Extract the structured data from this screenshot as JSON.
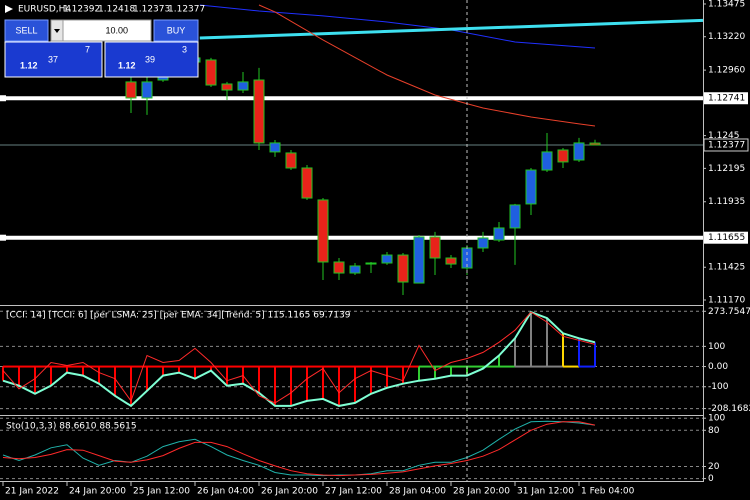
{
  "chart_data": [
    {
      "type": "candlestick",
      "title": "EURUSD,H4",
      "x": [
        8,
        9,
        10,
        11,
        12,
        13,
        14,
        15,
        16,
        17,
        18,
        19,
        20,
        21,
        22,
        23,
        24,
        25,
        26,
        27,
        28,
        29,
        30,
        31,
        32,
        33,
        34,
        35,
        36,
        37
      ],
      "open": [
        1.12868,
        1.12743,
        1.12883,
        1.12938,
        1.13023,
        1.13039,
        1.12852,
        1.12805,
        1.12883,
        1.12323,
        1.12315,
        1.12198,
        1.11949,
        1.11466,
        1.1138,
        1.1145,
        1.11458,
        1.1152,
        1.11302,
        1.11661,
        1.11497,
        1.11419,
        1.11575,
        1.11637,
        1.11731,
        1.11918,
        1.12182,
        1.12338,
        1.1226,
        1.12392
      ],
      "high": [
        1.12907,
        1.12907,
        1.12961,
        1.13078,
        1.13117,
        1.13055,
        1.12868,
        1.12945,
        1.12977,
        1.12416,
        1.12338,
        1.12221,
        1.11964,
        1.11497,
        1.11458,
        1.11466,
        1.11544,
        1.11536,
        1.11676,
        1.117,
        1.1152,
        1.11598,
        1.117,
        1.11777,
        1.11918,
        1.12198,
        1.1247,
        1.12354,
        1.12432,
        1.12418
      ],
      "low": [
        1.12626,
        1.12611,
        1.12868,
        1.12922,
        1.12992,
        1.12829,
        1.12727,
        1.12782,
        1.12338,
        1.12284,
        1.12182,
        1.11949,
        1.11326,
        1.11326,
        1.11365,
        1.1138,
        1.11443,
        1.11209,
        1.11302,
        1.11365,
        1.11419,
        1.11365,
        1.11544,
        1.11622,
        1.11443,
        1.11832,
        1.12167,
        1.12198,
        1.12245,
        1.12373
      ],
      "close": [
        1.12743,
        1.12868,
        1.12938,
        1.13023,
        1.13055,
        1.12844,
        1.12805,
        1.12868,
        1.12393,
        1.12393,
        1.12198,
        1.11964,
        1.11466,
        1.1138,
        1.11435,
        1.11458,
        1.1152,
        1.1131,
        1.11661,
        1.11497,
        1.1145,
        1.11575,
        1.11653,
        1.11731,
        1.1191,
        1.12182,
        1.12323,
        1.12245,
        1.12393,
        1.12377
      ],
      "up_color": "#1f5fe0",
      "down_color": "#e8231a",
      "wick_color": "#22c522",
      "lines": [
        {
          "color": "#2030ff",
          "x": [
            12.3,
            16,
            20,
            24,
            28,
            32,
            37
          ],
          "values": [
            1.13467,
            1.1342,
            1.13382,
            1.13335,
            1.13273,
            1.13179,
            1.13132
          ]
        },
        {
          "color": "#3ee0f0",
          "x": [
            12.3,
            43.75
          ],
          "values": [
            1.1321,
            1.13347
          ]
        },
        {
          "color": "#e8402a",
          "x": [
            16,
            17,
            20,
            24,
            27,
            30,
            33,
            36,
            37
          ],
          "values": [
            1.13467,
            1.13413,
            1.13195,
            1.12922,
            1.12766,
            1.12665,
            1.12595,
            1.12541,
            1.12525
          ]
        }
      ],
      "hlines": [
        1.12741,
        1.11655
      ],
      "xlim": [
        -0.1875,
        43.75
      ],
      "ylim": [
        1.11131,
        1.13506
      ],
      "yticks": [
        1.13475,
        {
          "value": 1.1322,
          "label": "1.13220"
        },
        {
          "value": 1.1296,
          "label": "1.12960"
        },
        1.1245,
        1.12195,
        1.11935,
        1.11425,
        {
          "value": 1.1117,
          "label": "1.11170"
        }
      ],
      "xticks": [
        {
          "value": 0,
          "label": "21 Jan 2022"
        },
        {
          "value": 4,
          "label": "24 Jan 20:00"
        },
        {
          "value": 8,
          "label": "25 Jan 12:00"
        },
        {
          "value": 12,
          "label": "26 Jan 04:00"
        },
        {
          "value": 16,
          "label": "26 Jan 20:00"
        },
        {
          "value": 20,
          "label": "27 Jan 12:00"
        },
        {
          "value": 24,
          "label": "28 Jan 04:00"
        },
        {
          "value": 28,
          "label": "28 Jan 20:00"
        },
        {
          "value": 32,
          "label": "31 Jan 12:00"
        },
        {
          "value": 36,
          "label": "1 Feb 04:00"
        }
      ]
    },
    {
      "type": "histogram",
      "title": "[CCI: 14] [TCCI: 6] [per LSMA: 25] [per EMA: 34][Trend: 5]  115.1165 69.7139",
      "x": [
        0,
        1,
        2,
        3,
        4,
        5,
        6,
        7,
        8,
        9,
        10,
        11,
        12,
        13,
        14,
        15,
        16,
        17,
        18,
        19,
        20,
        21,
        22,
        23,
        24,
        25,
        26,
        27,
        28,
        29,
        30,
        31,
        32,
        33,
        34,
        35,
        36,
        37
      ],
      "series": [
        {
          "color": "#7fffd4",
          "values": [
            -70,
            -95,
            -135,
            -95,
            -30,
            -45,
            -85,
            -145,
            -195,
            -120,
            -45,
            -30,
            -60,
            -20,
            -95,
            -85,
            -130,
            -195,
            -195,
            -170,
            -160,
            -195,
            -180,
            -135,
            -105,
            -85,
            -70,
            -60,
            -45,
            -45,
            -10,
            55,
            140,
            270,
            240,
            165,
            140,
            120
          ],
          "bar_colors": [
            "#ff0000",
            "#ff0000",
            "#ff0000",
            "#ff0000",
            "#ff0000",
            "#ff0000",
            "#ff0000",
            "#ff0000",
            "#ff0000",
            "#ff0000",
            "#ff0000",
            "#ff0000",
            "#ff0000",
            "#ff0000",
            "#ff0000",
            "#ff0000",
            "#ff0000",
            "#ff0000",
            "#ff0000",
            "#ff0000",
            "#ff0000",
            "#ff0000",
            "#ff0000",
            "#ff0000",
            "#ff0000",
            "#ff0000",
            "#32cd32",
            "#32cd32",
            "#32cd32",
            "#32cd32",
            "#32cd32",
            "#32cd32",
            "#808080",
            "#808080",
            "#808080",
            "#ffd700",
            "#1020ff",
            "#1020ff"
          ]
        },
        {
          "color": "#ff2a2a",
          "values": [
            -20,
            -110,
            -60,
            20,
            5,
            20,
            -30,
            -60,
            -170,
            55,
            20,
            30,
            90,
            20,
            -70,
            -45,
            -145,
            -180,
            -130,
            -60,
            -10,
            -130,
            -60,
            -20,
            -45,
            -70,
            105,
            -20,
            20,
            40,
            70,
            120,
            180,
            270,
            220,
            150,
            130,
            110
          ]
        }
      ],
      "xlim": [
        -0.1875,
        43.75
      ],
      "ylim": [
        -240,
        300
      ],
      "yticks": [
        273.7547,
        100,
        {
          "value": 0,
          "label": "0.00"
        },
        -100,
        -208.1682
      ]
    },
    {
      "type": "line",
      "title": "Sto(10,3,3) 88.6610 88.5615",
      "x": [
        0,
        1,
        2,
        3,
        4,
        5,
        6,
        7,
        8,
        9,
        10,
        11,
        12,
        13,
        14,
        15,
        16,
        17,
        18,
        19,
        20,
        21,
        22,
        23,
        24,
        25,
        26,
        27,
        28,
        29,
        30,
        31,
        32,
        33,
        34,
        35,
        36,
        37
      ],
      "series": [
        {
          "color": "#20b2aa",
          "values": [
            39,
            30,
            39,
            51,
            56,
            34,
            22,
            30,
            27,
            37,
            53,
            61,
            65,
            53,
            39,
            30,
            22,
            10,
            6,
            6,
            5,
            6,
            6,
            8,
            13,
            13,
            22,
            27,
            27,
            35,
            47,
            65,
            82,
            94,
            95,
            94,
            92,
            88.661
          ]
        },
        {
          "color": "#ff2a2a",
          "values": [
            35,
            33,
            35,
            40,
            48,
            47,
            38,
            29,
            27,
            31,
            38,
            50,
            60,
            60,
            53,
            41,
            30,
            21,
            13,
            8,
            6,
            5,
            6,
            7,
            9,
            11,
            16,
            21,
            25,
            30,
            37,
            48,
            64,
            80,
            90,
            94,
            94,
            88.5615
          ]
        }
      ],
      "xlim": [
        -0.1875,
        43.75
      ],
      "ylim": [
        -4,
        102
      ],
      "yticks": [
        100,
        80,
        20,
        0
      ]
    }
  ],
  "trade_panel": {
    "sell": "SELL",
    "buy": "BUY",
    "lots": "10.00",
    "bid": {
      "big": "1.12",
      "main": "37",
      "small": "7"
    },
    "ask": {
      "big": "1.12",
      "main": "39",
      "small": "3"
    }
  }
}
